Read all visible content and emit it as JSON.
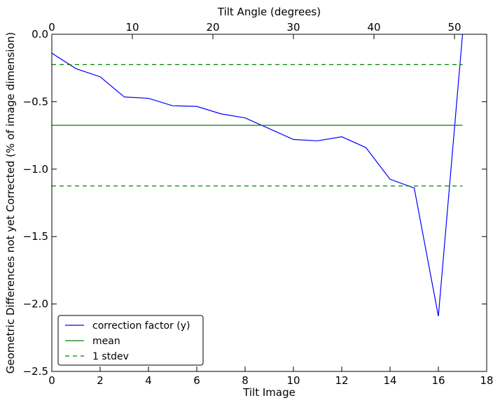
{
  "chart_data": {
    "type": "line",
    "xlabel": "Tilt Image",
    "x2label": "Tilt Angle (degrees)",
    "ylabel": "Geometric Differences not yet Corrected (% of image dimension)",
    "xlim": [
      0,
      18
    ],
    "ylim": [
      -2.5,
      0.0
    ],
    "x2lim": [
      0,
      54
    ],
    "xticks": [
      0,
      2,
      4,
      6,
      8,
      10,
      12,
      14,
      16,
      18
    ],
    "xtick_labels": [
      "0",
      "2",
      "4",
      "6",
      "8",
      "10",
      "12",
      "14",
      "16",
      "18"
    ],
    "yticks": [
      0.0,
      -0.5,
      -1.0,
      -1.5,
      -2.0,
      -2.5
    ],
    "ytick_labels": [
      "0.0",
      "−0.5",
      "−1.0",
      "−1.5",
      "−2.0",
      "−2.5"
    ],
    "x2ticks": [
      0,
      10,
      20,
      30,
      40,
      50
    ],
    "x2tick_labels": [
      "0",
      "10",
      "20",
      "30",
      "40",
      "50"
    ],
    "grid": false,
    "legend_position": "lower-left",
    "series": [
      {
        "name": "correction factor (y)",
        "style": "solid",
        "color": "#0000ff",
        "x": [
          0,
          1,
          2,
          3,
          4,
          5,
          6,
          7,
          8,
          9,
          10,
          11,
          12,
          13,
          14,
          15,
          16,
          17
        ],
        "y": [
          -0.14,
          -0.255,
          -0.315,
          -0.465,
          -0.475,
          -0.53,
          -0.535,
          -0.59,
          -0.62,
          -0.7,
          -0.78,
          -0.79,
          -0.76,
          -0.84,
          -1.075,
          -1.14,
          -2.09,
          0.0
        ]
      },
      {
        "name": "mean",
        "style": "solid",
        "color": "#008000",
        "x": [
          0,
          17
        ],
        "y": [
          -0.675,
          -0.675
        ]
      },
      {
        "name": "1 stdev",
        "style": "dashed",
        "color": "#008000",
        "x": [
          0,
          17
        ],
        "y": [
          -0.225,
          -0.225
        ]
      },
      {
        "name": "",
        "style": "dashed",
        "color": "#008000",
        "x": [
          0,
          17
        ],
        "y": [
          -1.125,
          -1.125
        ]
      }
    ],
    "legend": [
      {
        "label": "correction factor (y)",
        "color": "#0000ff",
        "style": "solid"
      },
      {
        "label": "mean",
        "color": "#008000",
        "style": "solid"
      },
      {
        "label": "1 stdev",
        "color": "#008000",
        "style": "dashed"
      }
    ]
  }
}
